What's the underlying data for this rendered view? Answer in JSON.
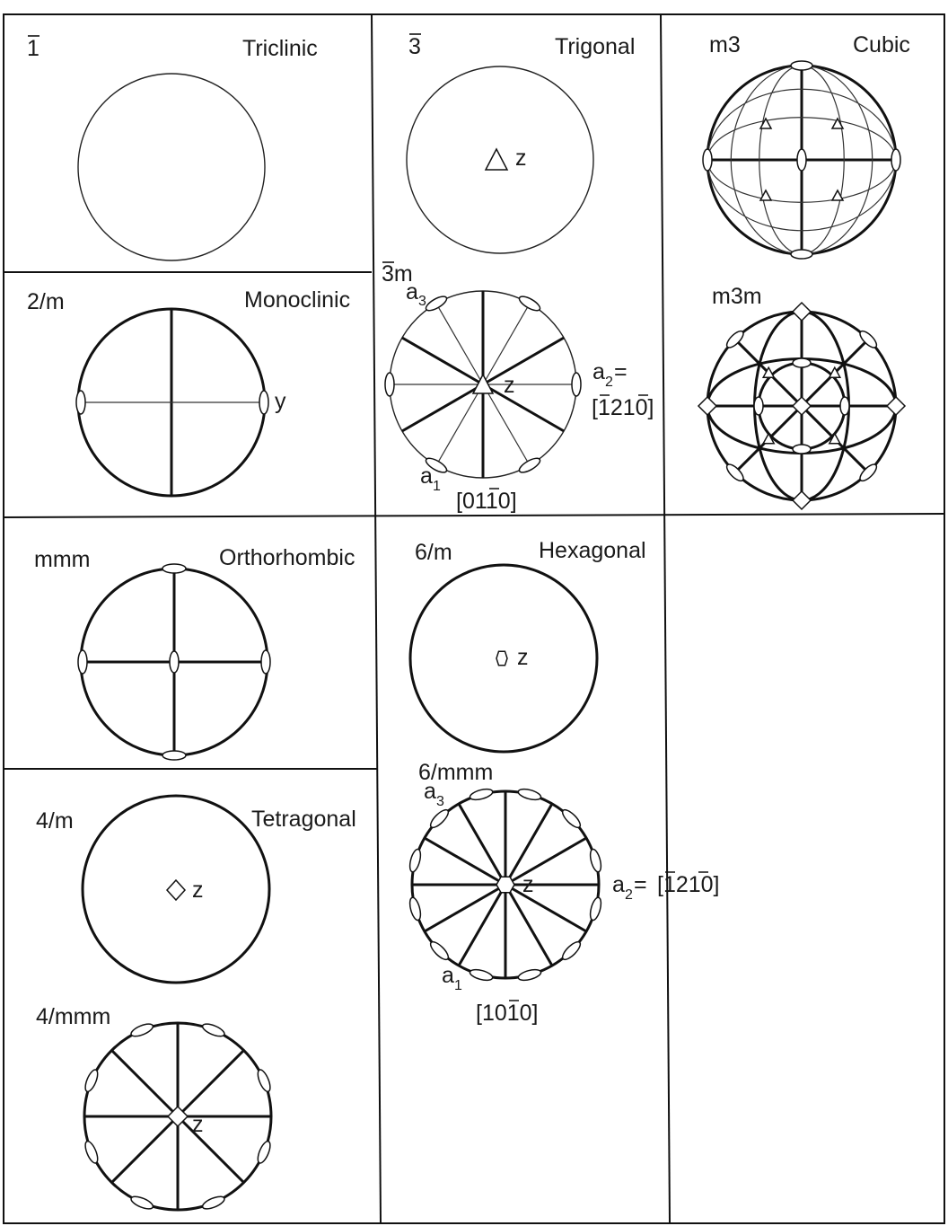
{
  "panels": {
    "triclinic": {
      "symbol": "1",
      "name": "Triclinic"
    },
    "trigonal": {
      "symbol": "3",
      "name": "Trigonal",
      "axis": "z"
    },
    "cubic": {
      "symbol": "m3",
      "name": "Cubic"
    },
    "monoclinic": {
      "symbol": "2/m",
      "name": "Monoclinic",
      "axis": "y"
    },
    "trigonal_3m": {
      "symbol": "3m",
      "a3": "a",
      "a3_sub": "3",
      "a1": "a",
      "a1_sub": "1",
      "z": "z",
      "a2": "a",
      "a2_sub": "2",
      "a2_eq": "=",
      "a2_index": "[1210]",
      "bottom_index": "[0110]"
    },
    "cubic_m3m": {
      "symbol": "m3m"
    },
    "orthorhombic": {
      "symbol": "mmm",
      "name": "Orthorhombic"
    },
    "hexagonal": {
      "symbol": "6/m",
      "name": "Hexagonal",
      "axis": "z"
    },
    "hexagonal_6mmm": {
      "symbol": "6/mmm",
      "a3": "a",
      "a3_sub": "3",
      "a1": "a",
      "a1_sub": "1",
      "z": "z",
      "a2": "a",
      "a2_sub": "2",
      "a2_eq": "=",
      "a2_index": "[1210]",
      "bottom_index": "[1010]"
    },
    "tetragonal": {
      "symbol": "4/m",
      "name": "Tetragonal",
      "axis": "z"
    },
    "tetragonal_4mmm": {
      "symbol": "4/mmm",
      "axis": "z"
    }
  }
}
